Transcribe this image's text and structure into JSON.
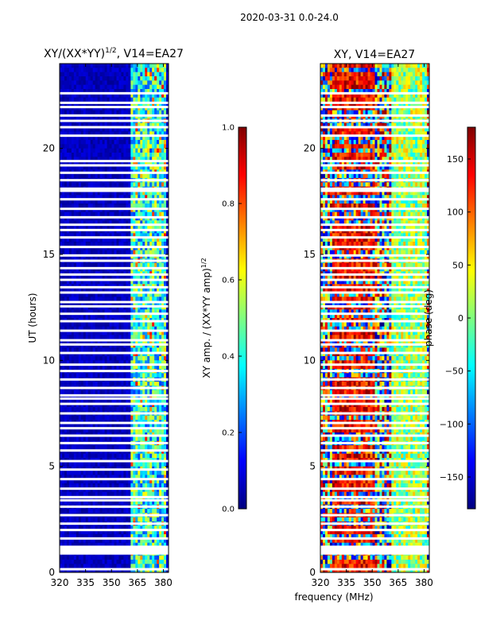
{
  "suptitle": "2020-03-31 0.0-24.0",
  "chart_data": [
    {
      "type": "heatmap",
      "title_base": "XY/(XX*YY)",
      "title_sup": "1/2",
      "title_suffix": ", V14=EA27",
      "xlabel": "",
      "ylabel": "UT (hours)",
      "xlim": [
        320,
        383
      ],
      "ylim": [
        0,
        24
      ],
      "xticks": [
        320,
        335,
        350,
        365,
        380
      ],
      "yticks": [
        0,
        5,
        10,
        15,
        20
      ],
      "colorbar": {
        "label_base": "XY amp. / (XX*YY amp)",
        "label_sup": "1/2",
        "range": [
          0.0,
          1.0
        ],
        "ticks": [
          "0.0",
          "0.2",
          "0.4",
          "0.6",
          "0.8",
          "1.0"
        ],
        "colormap": "jet"
      }
    },
    {
      "type": "heatmap",
      "title": "XY, V14=EA27",
      "xlabel": "frequency (MHz)",
      "ylabel": "",
      "xlim": [
        320,
        383
      ],
      "ylim": [
        0,
        24
      ],
      "xticks": [
        320,
        335,
        350,
        365,
        380
      ],
      "yticks": [
        0,
        5,
        10,
        15,
        20
      ],
      "colorbar": {
        "label": "phase (deg)",
        "range": [
          -180,
          180
        ],
        "ticks": [
          "−150",
          "−100",
          "−50",
          "0",
          "50",
          "100",
          "150"
        ],
        "tick_values": [
          -150,
          -100,
          -50,
          0,
          50,
          100,
          150
        ],
        "colormap": "jet"
      }
    }
  ],
  "flagged_rows_hours": [
    0.15,
    0.95,
    1.05,
    1.15,
    1.6,
    2.0,
    2.3,
    2.7,
    3.1,
    3.4,
    3.55,
    3.95,
    4.4,
    4.85,
    5.25,
    5.75,
    6.1,
    6.45,
    6.8,
    7.05,
    7.5,
    7.95,
    8.2,
    8.35,
    8.7,
    9.1,
    9.5,
    9.8,
    10.35,
    10.75,
    10.95,
    11.4,
    11.85,
    12.2,
    12.55,
    12.75,
    13.2,
    13.45,
    13.8,
    14.05,
    14.35,
    14.7,
    14.95,
    15.35,
    15.8,
    16.15,
    16.4,
    16.75,
    17.15,
    17.6,
    18.0,
    18.1,
    18.5,
    18.85,
    19.2,
    19.4,
    20.6,
    21.0,
    21.3,
    21.55,
    21.95,
    22.15,
    22.6
  ]
}
